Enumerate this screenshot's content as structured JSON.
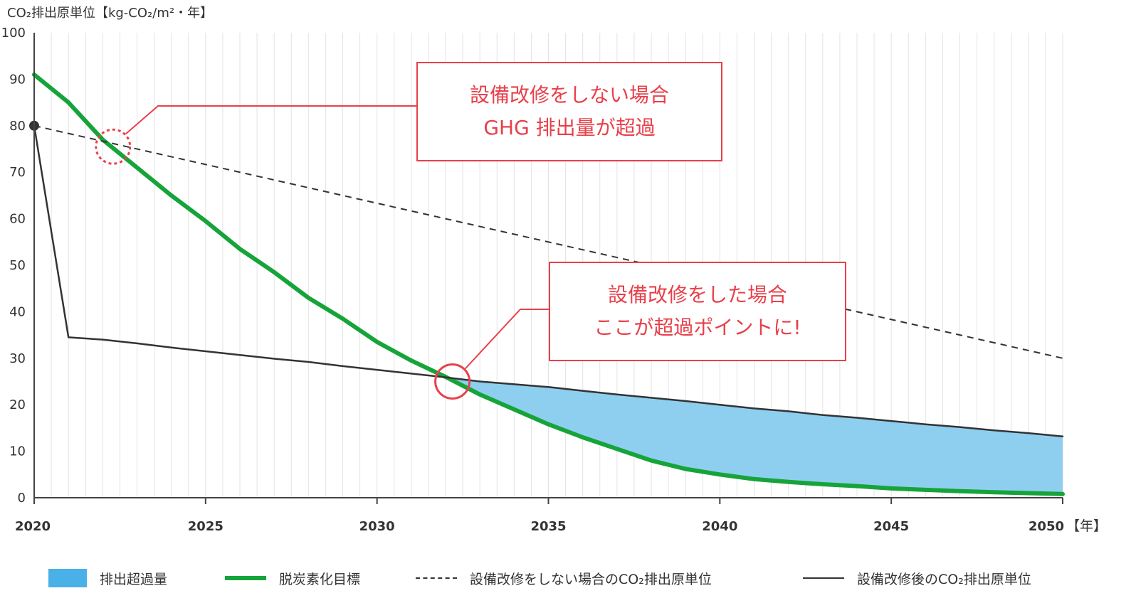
{
  "chart_data": {
    "type": "area",
    "ylabel": "CO₂排出原単位【kg-CO₂/m²・年】",
    "xunit": "【年】",
    "xlim": [
      2020,
      2050
    ],
    "ylim": [
      0,
      100
    ],
    "xticks": [
      "2020",
      "2025",
      "2030",
      "2035",
      "2040",
      "2045",
      "2050"
    ],
    "yticks": [
      "0",
      "10",
      "20",
      "30",
      "40",
      "50",
      "60",
      "70",
      "80",
      "90",
      "100"
    ],
    "grid": "vertical",
    "series": [
      {
        "name": "脱炭素化目標",
        "style": "line",
        "color": "#16a43a",
        "x": [
          2020,
          2021,
          2022,
          2023,
          2024,
          2025,
          2026,
          2027,
          2028,
          2029,
          2030,
          2031,
          2032,
          2033,
          2034,
          2035,
          2036,
          2037,
          2038,
          2039,
          2040,
          2041,
          2042,
          2043,
          2044,
          2045,
          2046,
          2047,
          2048,
          2049,
          2050
        ],
        "y": [
          91,
          85,
          77,
          71,
          65,
          59.5,
          53.5,
          48.5,
          43,
          38.5,
          33.5,
          29.5,
          26,
          22.2,
          19,
          15.8,
          13,
          10.5,
          8,
          6.2,
          5,
          4,
          3.4,
          2.9,
          2.5,
          2,
          1.7,
          1.4,
          1.2,
          1,
          0.8
        ]
      },
      {
        "name": "設備改修をしない場合のCO₂排出原単位",
        "style": "dashed",
        "color": "#333333",
        "x": [
          2020,
          2050
        ],
        "y": [
          80,
          30
        ]
      },
      {
        "name": "設備改修後のCO₂排出原単位",
        "style": "line",
        "color": "#333333",
        "x": [
          2020,
          2021,
          2022,
          2023,
          2024,
          2025,
          2026,
          2027,
          2028,
          2029,
          2030,
          2031,
          2032,
          2033,
          2034,
          2035,
          2036,
          2037,
          2038,
          2039,
          2040,
          2041,
          2042,
          2043,
          2044,
          2045,
          2046,
          2047,
          2048,
          2049,
          2050
        ],
        "y": [
          80,
          34.5,
          34,
          33.2,
          32.3,
          31.5,
          30.7,
          29.9,
          29.2,
          28.3,
          27.5,
          26.7,
          25.9,
          25,
          24.4,
          23.8,
          23,
          22.2,
          21.5,
          20.8,
          20,
          19.2,
          18.6,
          17.8,
          17.2,
          16.5,
          15.8,
          15.2,
          14.5,
          13.9,
          13.2
        ]
      }
    ],
    "area": {
      "name": "排出超過量",
      "color": "#8ecfef",
      "legend_color": "#4ab0e8",
      "from_x": 2032.2,
      "upper": "設備改修後のCO₂排出原単位",
      "lower": "脱炭素化目標"
    },
    "start_point": {
      "x": 2020,
      "y": 80
    },
    "callouts": [
      {
        "lines": [
          "設備改修をしない場合",
          "GHG 排出量が超過"
        ],
        "circle_x": 2022.3,
        "circle_y": 75.5,
        "circle_style": "dotted"
      },
      {
        "lines": [
          "設備改修をした場合",
          "ここが超過ポイントに!"
        ],
        "circle_x": 2032.2,
        "circle_y": 25,
        "circle_style": "solid"
      }
    ],
    "legend": [
      "排出超過量",
      "脱炭素化目標",
      "設備改修をしない場合のCO₂排出原単位",
      "設備改修後のCO₂排出原単位"
    ],
    "legend_position": "bottom"
  }
}
